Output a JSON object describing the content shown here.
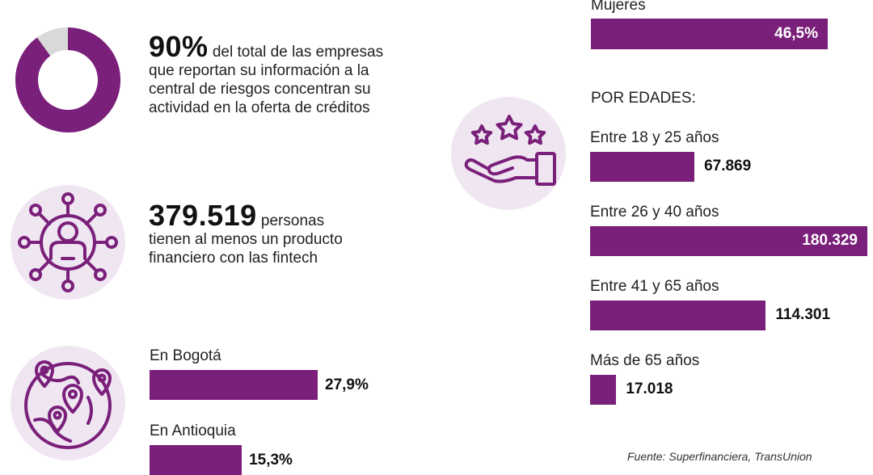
{
  "colors": {
    "accent": "#7a1f7a",
    "light_circle": "#efe6f2",
    "donut_rest": "#d9d9d9"
  },
  "stat1": {
    "big": "90%",
    "text_lead": "del total de las empresas",
    "text_rest": "que reportan su información a la central de riesgos concentran su actividad en la oferta de créditos"
  },
  "stat2": {
    "big": "379.519",
    "text_lead": "personas",
    "text_rest": "tienen al menos un producto financiero con las fintech"
  },
  "icons": [
    "donut-chart-icon",
    "network-person-icon",
    "globe-location-pins-icon",
    "hand-three-stars-icon"
  ],
  "chart_data": [
    {
      "type": "pie",
      "categories": [
        "",
        ""
      ],
      "values": [
        90,
        10
      ]
    },
    {
      "type": "bar",
      "categories": [
        "En Bogotá",
        "En Antioquia"
      ],
      "values": [
        27.9,
        15.3
      ],
      "value_labels": [
        "27,9%",
        "15,3%"
      ]
    },
    {
      "type": "bar",
      "categories": [
        "Mujeres"
      ],
      "values": [
        46.5
      ],
      "value_labels": [
        "46,5%"
      ]
    },
    {
      "type": "bar",
      "title": "POR EDADES:",
      "categories": [
        "Entre 18 y 25 años",
        "Entre 26 y 40 años",
        "Entre 41 y 65 años",
        "Más de 65 años"
      ],
      "values": [
        67869,
        180329,
        114301,
        17018
      ],
      "value_labels": [
        "67.869",
        "180.329",
        "114.301",
        "17.018"
      ]
    }
  ],
  "source": "Fuente: Superfinanciera, TransUnion"
}
